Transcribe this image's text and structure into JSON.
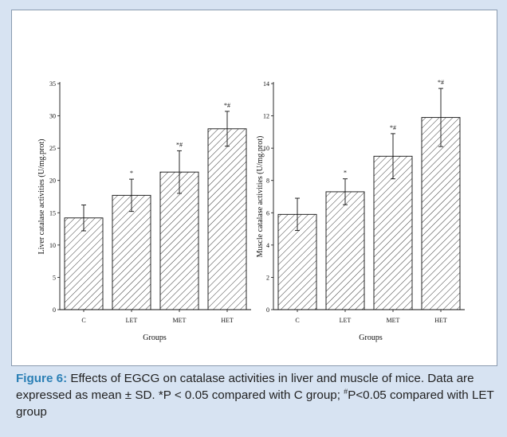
{
  "caption": {
    "label": "Figure 6:",
    "text_1": " Effects of EGCG on catalase activities in liver and muscle of mice. Data are expressed as mean ± SD. *P < 0.05 compared with C group; ",
    "hash_mark": "#",
    "text_2": "P<0.05 compared with LET group"
  },
  "colors": {
    "frame": "#d7e3f2",
    "caption_label": "#2a7fb5",
    "bar_hatch": "#222222"
  },
  "chart_data": [
    {
      "type": "bar",
      "title": "",
      "categories": [
        "C",
        "LET",
        "MET",
        "HET"
      ],
      "values": [
        14.2,
        17.7,
        21.3,
        28.0
      ],
      "error": [
        2.0,
        2.5,
        3.3,
        2.7
      ],
      "significance": [
        "",
        "*",
        "*#",
        "*#"
      ],
      "xlabel": "Groups",
      "ylabel": "Liver catalase activities (U/mg.prot)",
      "ylim": [
        0,
        35
      ],
      "yticks": [
        0,
        5,
        10,
        15,
        20,
        25,
        30,
        35
      ],
      "grid": false,
      "pattern": "diagonal-hatch"
    },
    {
      "type": "bar",
      "title": "",
      "categories": [
        "C",
        "LET",
        "MET",
        "HET"
      ],
      "values": [
        5.9,
        7.3,
        9.5,
        11.9
      ],
      "error": [
        1.0,
        0.8,
        1.4,
        1.8
      ],
      "significance": [
        "",
        "*",
        "*#",
        "*#"
      ],
      "xlabel": "Groups",
      "ylabel": "Muscle catalase activities (U/mg.prot)",
      "ylim": [
        0,
        14
      ],
      "yticks": [
        0,
        2,
        4,
        6,
        8,
        10,
        12,
        14
      ],
      "grid": false,
      "pattern": "diagonal-hatch"
    }
  ]
}
